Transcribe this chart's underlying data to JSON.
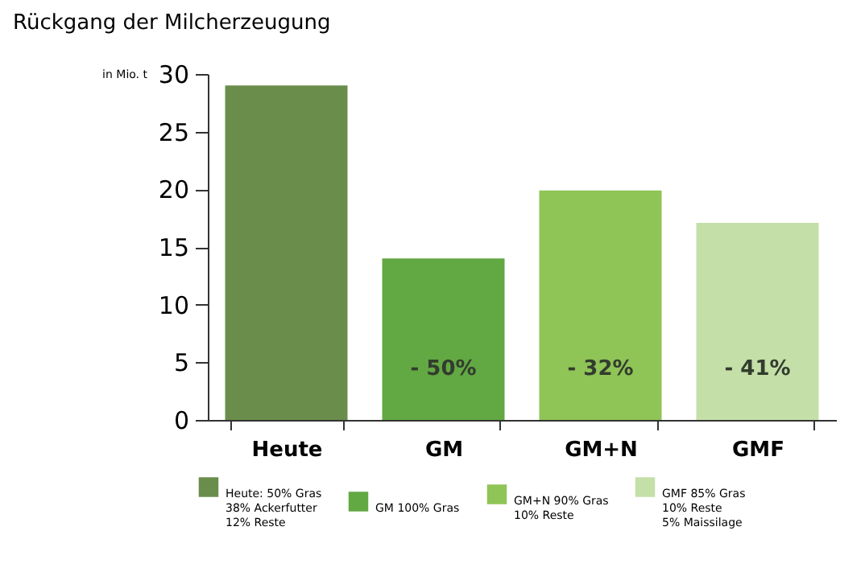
{
  "chart_data": {
    "type": "bar",
    "title": "Rückgang der Milcherzeugung",
    "ylabel": "in Mio. t",
    "categories": [
      "Heute",
      "GM",
      "GM+N",
      "GMF"
    ],
    "series": [
      {
        "name": "Heute: 50% Gras\n38% Ackerfutter\n12% Reste",
        "color": "#6b8d4b",
        "values": [
          29,
          null,
          null,
          null
        ]
      },
      {
        "name": "GM 100% Gras",
        "color": "#62a843",
        "values": [
          null,
          14,
          null,
          null
        ]
      },
      {
        "name": "GM+N 90% Gras\n10% Reste",
        "color": "#8fc457",
        "values": [
          null,
          null,
          19.9,
          null
        ]
      },
      {
        "name": "GMF 85% Gras\n10% Reste\n5% Maissilage",
        "color": "#c5dfa8",
        "values": [
          null,
          null,
          null,
          17.1
        ]
      }
    ],
    "annotations": [
      "-  50%",
      "-  32%",
      "-  41%"
    ],
    "ylim": [
      0,
      30
    ],
    "yticks": [
      0,
      5,
      10,
      15,
      20,
      25,
      30
    ],
    "grid": false,
    "legend": "bottom"
  }
}
